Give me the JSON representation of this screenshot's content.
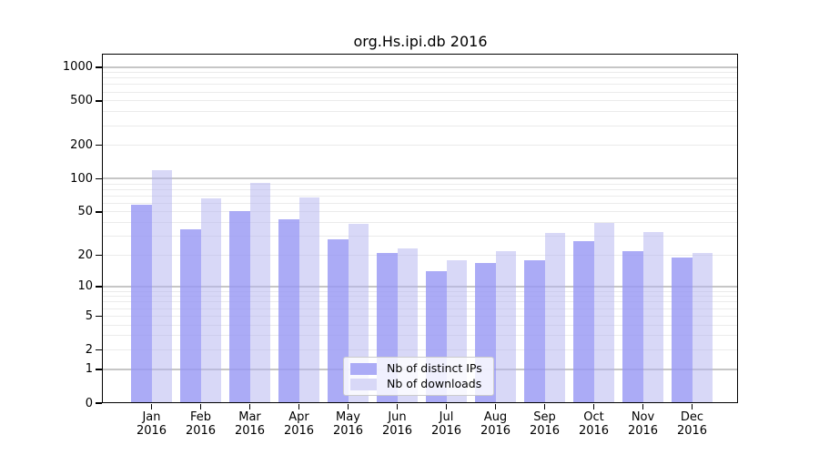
{
  "chart_data": {
    "type": "bar",
    "title": "org.Hs.ipi.db 2016",
    "categories": [
      "Jan 2016",
      "Feb 2016",
      "Mar 2016",
      "Apr 2016",
      "May 2016",
      "Jun 2016",
      "Jul 2016",
      "Aug 2016",
      "Sep 2016",
      "Oct 2016",
      "Nov 2016",
      "Dec 2016"
    ],
    "series": [
      {
        "name": "Nb of distinct IPs",
        "color": "#ababf6",
        "values": [
          58,
          35,
          51,
          43,
          28,
          21,
          14,
          17,
          18,
          27,
          22,
          19
        ]
      },
      {
        "name": "Nb of downloads",
        "color": "#d8d8f7",
        "values": [
          120,
          67,
          92,
          68,
          39,
          23,
          18,
          22,
          32,
          40,
          33,
          21
        ]
      }
    ],
    "y_axis": {
      "ticks": [
        0,
        1,
        2,
        5,
        10,
        20,
        50,
        100,
        200,
        500,
        1000
      ],
      "scale": "log10(value+1)",
      "ylim": [
        0,
        1300
      ],
      "major_gridlines": [
        1,
        10,
        100,
        1000
      ],
      "grid": "on (log minor + major)"
    },
    "x_axis": {
      "label": "",
      "tick_label_lines": 2
    },
    "legend_position": "lower center",
    "colors": {
      "major_grid": "#c6c6c6",
      "minor_grid": "#ebebeb",
      "axis": "#000000",
      "background": "#ffffff"
    }
  }
}
